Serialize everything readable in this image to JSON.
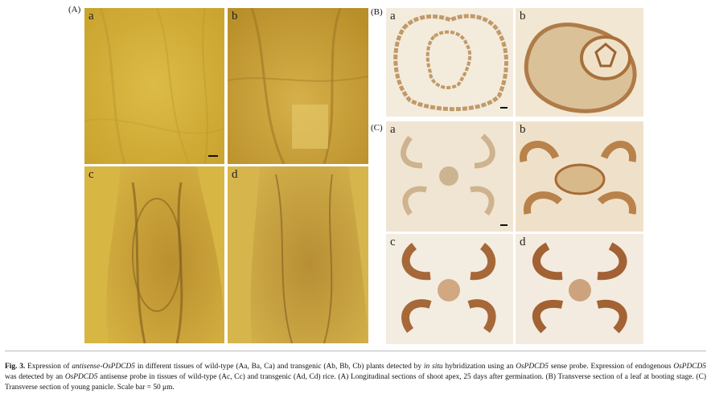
{
  "panels": {
    "A": {
      "label": "(A)",
      "tiles": [
        {
          "letter": "a"
        },
        {
          "letter": "b"
        },
        {
          "letter": "c"
        },
        {
          "letter": "d"
        }
      ]
    },
    "B": {
      "label": "(B)",
      "tiles": [
        {
          "letter": "a"
        },
        {
          "letter": "b"
        }
      ]
    },
    "C": {
      "label": "(C)",
      "tiles": [
        {
          "letter": "a"
        },
        {
          "letter": "b"
        },
        {
          "letter": "c"
        },
        {
          "letter": "d"
        }
      ]
    }
  },
  "caption": {
    "fig": "Fig. 3.",
    "t1": " Expression of ",
    "i1": "antisense-OsPDCD5",
    "t2": " in different tissues of wild-type (Aa, Ba, Ca) and transgenic (Ab, Bb, Cb) plants detected by ",
    "i2": "in situ",
    "t3": " hybridization using an ",
    "i3": "OsPDCD5",
    "t4": " sense probe. Expression of endogenous ",
    "i4": "OsPDCD5",
    "t5": " was detected by an ",
    "i5": "OsPDCD5",
    "t6": " antisense probe in tissues of wild-type (Ac, Cc) and transgenic (Ad, Cd) rice. (A) Longitudinal sections of shoot apex, 25 days after germination. (B) Transverse section of a leaf at booting stage. (C) Transverse section of young panicle. Scale bar = 50 ",
    "mu": "μm",
    "t7": "."
  }
}
